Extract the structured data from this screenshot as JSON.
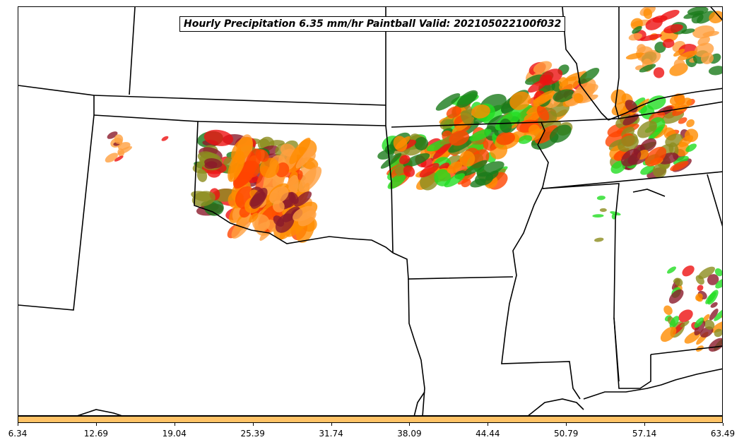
{
  "title": "Hourly Precipitation 6.35 mm/hr Paintball Valid: 202105022100f032",
  "colorbar": {
    "color": "#ffc266",
    "ticks": [
      "6.34",
      "12.69",
      "19.04",
      "25.39",
      "31.74",
      "38.09",
      "44.44",
      "50.79",
      "57.14",
      "63.49"
    ]
  },
  "palette": {
    "dark_red": "#8b1a2a",
    "olive": "#8c8c1e",
    "dark_green": "#1a7a1a",
    "bright_green": "#22dd22",
    "red": "#ee1111",
    "orange_red": "#ff4500",
    "orange": "#ff8c00",
    "light_orange": "#ffa040",
    "border": "#000000"
  }
}
